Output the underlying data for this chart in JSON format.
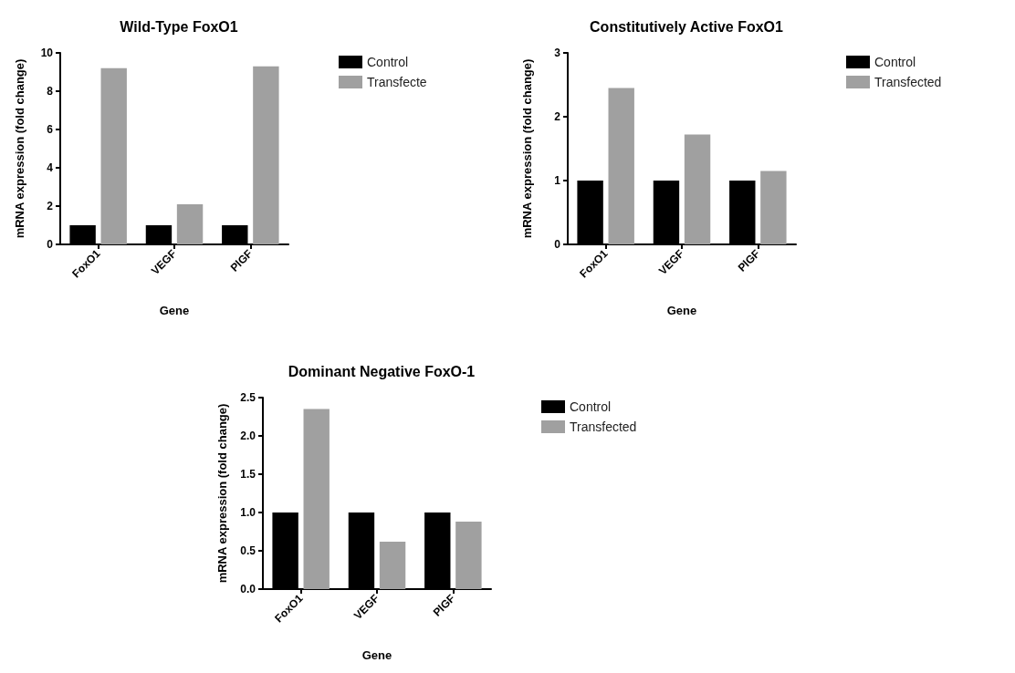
{
  "chart_data": [
    {
      "type": "bar",
      "title": "Wild-Type FoxO1",
      "xlabel": "Gene",
      "ylabel": "mRNA expression (fold change)",
      "categories": [
        "FoxO1",
        "VEGF",
        "PlGF"
      ],
      "series": [
        {
          "name": "Control",
          "color": "#000000",
          "values": [
            1,
            1,
            1
          ]
        },
        {
          "name": "Transfecte",
          "color": "#a0a0a0",
          "values": [
            9.2,
            2.1,
            9.3
          ]
        }
      ],
      "ylim": [
        0,
        10
      ],
      "yticks": [
        0,
        2,
        4,
        6,
        8,
        10
      ],
      "grid": false,
      "legend": "top right"
    },
    {
      "type": "bar",
      "title": "Constitutively Active FoxO1",
      "xlabel": "Gene",
      "ylabel": "mRNA expression (fold change)",
      "categories": [
        "FoxO1",
        "VEGF",
        "PlGF"
      ],
      "series": [
        {
          "name": "Control",
          "color": "#000000",
          "values": [
            1,
            1,
            1
          ]
        },
        {
          "name": "Transfected",
          "color": "#a0a0a0",
          "values": [
            2.45,
            1.72,
            1.15
          ]
        }
      ],
      "ylim": [
        0,
        3
      ],
      "yticks": [
        0,
        1,
        2,
        3
      ],
      "grid": false,
      "legend": "top right"
    },
    {
      "type": "bar",
      "title": "Dominant Negative FoxO-1",
      "xlabel": "Gene",
      "ylabel": "mRNA expression (fold change)",
      "categories": [
        "FoxO1",
        "VEGF",
        "PlGF"
      ],
      "series": [
        {
          "name": "Control",
          "color": "#000000",
          "values": [
            1,
            1,
            1
          ]
        },
        {
          "name": "Transfected",
          "color": "#a0a0a0",
          "values": [
            2.35,
            0.62,
            0.88
          ]
        }
      ],
      "ylim": [
        0,
        2.5
      ],
      "yticks": [
        {
          "value": 0,
          "label": "0.0"
        },
        {
          "value": 0.5,
          "label": "0.5"
        },
        {
          "value": 1,
          "label": "1.0"
        },
        {
          "value": 1.5,
          "label": "1.5"
        },
        {
          "value": 2,
          "label": "2.0"
        },
        {
          "value": 2.5,
          "label": "2.5"
        }
      ],
      "grid": false,
      "legend": "top right"
    }
  ]
}
